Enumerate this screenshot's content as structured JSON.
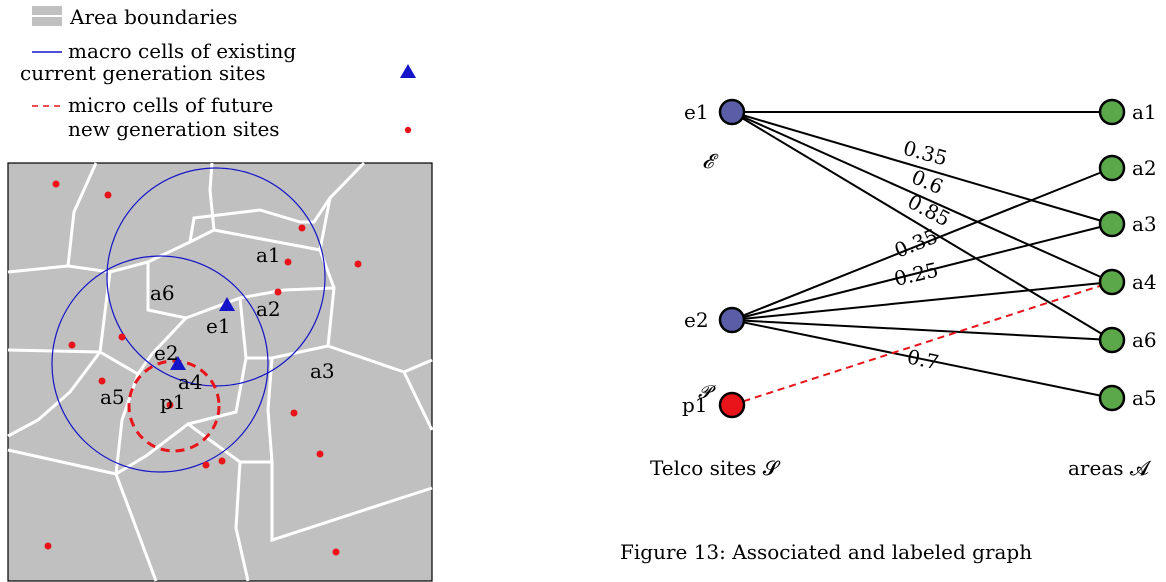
{
  "legend": {
    "area_boundaries": "Area boundaries",
    "macro_line1": "macro cells of existing",
    "macro_line2": "current generation sites",
    "micro_line1": "micro cells of future",
    "micro_line2": "new generation sites"
  },
  "map": {
    "area_labels": [
      "a1",
      "a2",
      "a3",
      "a4",
      "a5",
      "a6"
    ],
    "site_labels": [
      "e1",
      "e2",
      "p1"
    ]
  },
  "graph": {
    "left_nodes": [
      "e1",
      "e2",
      "p1"
    ],
    "right_nodes": [
      "a1",
      "a2",
      "a3",
      "a4",
      "a6",
      "a5"
    ],
    "set_E": "𝓔",
    "set_P": "𝓟",
    "telco_label": "Telco sites 𝓢",
    "areas_label": "areas 𝓐",
    "edge_labels": [
      "0.35",
      "0.6",
      "0.85",
      "0.35",
      "0.25",
      "0.7"
    ],
    "colors": {
      "existing_node": "#5b5ea6",
      "future_node": "#e8141a",
      "area_node": "#5aa84a",
      "macro": "#1414c8",
      "micro": "#e8141a",
      "map_bg": "#c0c0c0"
    }
  },
  "caption": "Figure 13: Associated and labeled graph"
}
